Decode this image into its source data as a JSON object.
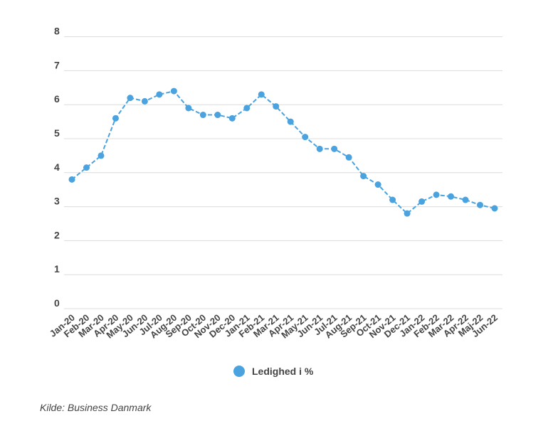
{
  "chart_data": {
    "type": "line",
    "categories": [
      "Jan-20",
      "Feb-20",
      "Mar-20",
      "Apr-20",
      "May-20",
      "Jun-20",
      "Jul-20",
      "Aug-20",
      "Sep-20",
      "Oct-20",
      "Nov-20",
      "Dec-20",
      "Jan-21",
      "Feb-21",
      "Mar-21",
      "Apr-21",
      "May-21",
      "Jun-21",
      "Jul-21",
      "Aug-21",
      "Sep-21",
      "Oct-21",
      "Nov-21",
      "Dec-21",
      "Jan-22",
      "Feb-22",
      "Mar-22",
      "Apr-22",
      "Maj-22",
      "Jun-22"
    ],
    "series": [
      {
        "name": "Ledighed i %",
        "color": "#4aa3df",
        "values": [
          3.8,
          4.15,
          4.5,
          5.6,
          6.2,
          6.1,
          6.3,
          6.4,
          5.9,
          5.7,
          5.7,
          5.6,
          5.9,
          6.3,
          5.95,
          5.5,
          5.05,
          4.7,
          4.7,
          4.45,
          3.9,
          3.65,
          3.2,
          2.8,
          3.15,
          3.35,
          3.3,
          3.2,
          3.05,
          2.95
        ]
      }
    ],
    "yticks": [
      0,
      1,
      2,
      3,
      4,
      5,
      6,
      7,
      8
    ],
    "ylim": [
      0,
      8
    ],
    "grid": true,
    "legend_position": "bottom"
  },
  "source": "Kilde: Business Danmark"
}
